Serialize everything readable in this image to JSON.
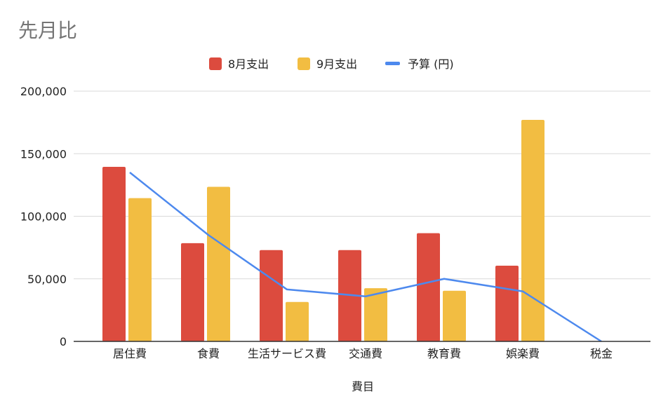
{
  "chart_data": {
    "type": "bar",
    "title": "先月比",
    "xlabel": "費目",
    "ylabel": "",
    "categories": [
      "居住費",
      "食費",
      "生活サービス費",
      "交通費",
      "教育費",
      "娯楽費",
      "税金"
    ],
    "series": [
      {
        "name": "8月支出",
        "kind": "bar",
        "color": "#dc4b3e",
        "values": [
          139500,
          78500,
          73000,
          73000,
          86500,
          60500,
          0
        ]
      },
      {
        "name": "9月支出",
        "kind": "bar",
        "color": "#f2bd42",
        "values": [
          114500,
          123500,
          31500,
          42500,
          40500,
          177000,
          0
        ]
      },
      {
        "name": "予算 (円)",
        "kind": "line",
        "color": "#4d89ee",
        "values": [
          135000,
          85000,
          41500,
          36000,
          50000,
          40000,
          0
        ]
      }
    ],
    "ylim": [
      0,
      200000
    ],
    "yticks": [
      0,
      50000,
      100000,
      150000,
      200000
    ],
    "ytick_labels": [
      "0",
      "50,000",
      "100,000",
      "150,000",
      "200,000"
    ],
    "grid": true,
    "legend_position": "top-center"
  }
}
